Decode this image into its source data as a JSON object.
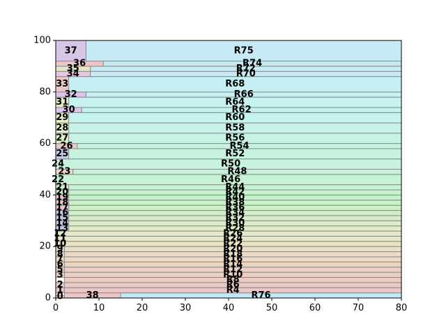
{
  "chart_data": {
    "type": "treemap",
    "title": "",
    "xlabel": "",
    "ylabel": "",
    "xlim": [
      0,
      80
    ],
    "ylim": [
      0,
      100
    ],
    "xticks": [
      0,
      10,
      20,
      30,
      40,
      50,
      60,
      70,
      80
    ],
    "yticks": [
      0,
      20,
      40,
      60,
      80,
      100
    ],
    "grid": false,
    "rects": [
      {
        "label": "0",
        "x0": 0,
        "y0": 0,
        "x1": 2,
        "y1": 1,
        "color": "#ecc6c6"
      },
      {
        "label": "38",
        "x0": 2,
        "y0": 0,
        "x1": 15,
        "y1": 2,
        "color": "#ecc6c6"
      },
      {
        "label": "R76",
        "x0": 15,
        "y0": 0,
        "x1": 80,
        "y1": 2,
        "color": "#bfe9f4"
      },
      {
        "label": "1",
        "x0": 0,
        "y0": 2,
        "x1": 2,
        "y1": 4,
        "color": "#ecc6c6"
      },
      {
        "label": "R4",
        "x0": 2,
        "y0": 2,
        "x1": 80,
        "y1": 4,
        "color": "#ecc6c6"
      },
      {
        "label": "2",
        "x0": 0,
        "y0": 4,
        "x1": 2,
        "y1": 6,
        "color": "#ecc9c5"
      },
      {
        "label": "R6",
        "x0": 2,
        "y0": 4,
        "x1": 80,
        "y1": 6,
        "color": "#ecc9c5"
      },
      {
        "label": "R8",
        "x0": 2,
        "y0": 6,
        "x1": 80,
        "y1": 8,
        "color": "#eccbc4"
      },
      {
        "label": "3",
        "x0": 0,
        "y0": 8,
        "x1": 2,
        "y1": 10,
        "color": "#eccec3"
      },
      {
        "label": "R10",
        "x0": 2,
        "y0": 8,
        "x1": 80,
        "y1": 10,
        "color": "#eccec3"
      },
      {
        "label": "5",
        "x0": 0,
        "y0": 10,
        "x1": 2,
        "y1": 12,
        "color": "#ecd1c3"
      },
      {
        "label": "R12",
        "x0": 2,
        "y0": 10,
        "x1": 80,
        "y1": 12,
        "color": "#ecd1c3"
      },
      {
        "label": "6",
        "x0": 0,
        "y0": 12,
        "x1": 2,
        "y1": 14,
        "color": "#ecd4c3"
      },
      {
        "label": "R14",
        "x0": 2,
        "y0": 12,
        "x1": 80,
        "y1": 14,
        "color": "#ecd4c3"
      },
      {
        "label": "7",
        "x0": 0,
        "y0": 14,
        "x1": 2,
        "y1": 16,
        "color": "#ecd8c3"
      },
      {
        "label": "R16",
        "x0": 2,
        "y0": 14,
        "x1": 80,
        "y1": 16,
        "color": "#ecd8c3"
      },
      {
        "label": "8",
        "x0": 0,
        "y0": 16,
        "x1": 2,
        "y1": 18,
        "color": "#ecdcc4"
      },
      {
        "label": "R18",
        "x0": 2,
        "y0": 16,
        "x1": 80,
        "y1": 18,
        "color": "#ecdcc4"
      },
      {
        "label": "9",
        "x0": 0,
        "y0": 18,
        "x1": 2,
        "y1": 20,
        "color": "#ebe0c5"
      },
      {
        "label": "R20",
        "x0": 2,
        "y0": 18,
        "x1": 80,
        "y1": 20,
        "color": "#ebe0c5"
      },
      {
        "label": "R22",
        "x0": 2,
        "y0": 20,
        "x1": 80,
        "y1": 22,
        "color": "#eae4c5"
      },
      {
        "label": "10",
        "x0": 0,
        "y0": 20,
        "x1": 2,
        "y1": 22,
        "color": "#eae4c5"
      },
      {
        "label": "R24",
        "x0": 2,
        "y0": 22,
        "x1": 80,
        "y1": 24,
        "color": "#e8e8c6"
      },
      {
        "label": "11",
        "x0": 0,
        "y0": 22,
        "x1": 2,
        "y1": 24,
        "color": "#e8e8c6"
      },
      {
        "label": "R26",
        "x0": 2,
        "y0": 24,
        "x1": 80,
        "y1": 26,
        "color": "#e4eac6"
      },
      {
        "label": "12",
        "x0": 0,
        "y0": 24,
        "x1": 2,
        "y1": 26,
        "color": "#e4eac6"
      },
      {
        "label": "13",
        "x0": 0,
        "y0": 26,
        "x1": 3,
        "y1": 28,
        "color": "#c6cdec"
      },
      {
        "label": "R28",
        "x0": 3,
        "y0": 26,
        "x1": 80,
        "y1": 28,
        "color": "#dfecc6"
      },
      {
        "label": "14",
        "x0": 0,
        "y0": 28,
        "x1": 3,
        "y1": 30,
        "color": "#c6cdec"
      },
      {
        "label": "R30",
        "x0": 3,
        "y0": 28,
        "x1": 80,
        "y1": 30,
        "color": "#dbedc6"
      },
      {
        "label": "15",
        "x0": 0,
        "y0": 30,
        "x1": 3,
        "y1": 32,
        "color": "#c6cdec"
      },
      {
        "label": "R32",
        "x0": 3,
        "y0": 30,
        "x1": 80,
        "y1": 32,
        "color": "#d6eec6"
      },
      {
        "label": "16",
        "x0": 0,
        "y0": 32,
        "x1": 3,
        "y1": 34,
        "color": "#c6cdec"
      },
      {
        "label": "R34",
        "x0": 3,
        "y0": 32,
        "x1": 80,
        "y1": 34,
        "color": "#d2efc6"
      },
      {
        "label": "17",
        "x0": 0,
        "y0": 34,
        "x1": 3,
        "y1": 36,
        "color": "#ecc6cc"
      },
      {
        "label": "R36",
        "x0": 3,
        "y0": 34,
        "x1": 80,
        "y1": 36,
        "color": "#cdf0c6"
      },
      {
        "label": "18",
        "x0": 0,
        "y0": 36,
        "x1": 3,
        "y1": 38,
        "color": "#ecc6cc"
      },
      {
        "label": "R38",
        "x0": 3,
        "y0": 36,
        "x1": 80,
        "y1": 38,
        "color": "#c9f1c6"
      },
      {
        "label": "19",
        "x0": 0,
        "y0": 38,
        "x1": 3,
        "y1": 40,
        "color": "#ecc6cc"
      },
      {
        "label": "R40",
        "x0": 3,
        "y0": 38,
        "x1": 80,
        "y1": 40,
        "color": "#c6f2c8"
      },
      {
        "label": "20",
        "x0": 0,
        "y0": 40,
        "x1": 3,
        "y1": 42,
        "color": "#c6f2cc"
      },
      {
        "label": "R42",
        "x0": 3,
        "y0": 40,
        "x1": 80,
        "y1": 42,
        "color": "#c6f2cc"
      },
      {
        "label": "21",
        "x0": 0,
        "y0": 42,
        "x1": 3,
        "y1": 44,
        "color": "#c6f3d0"
      },
      {
        "label": "R44",
        "x0": 3,
        "y0": 42,
        "x1": 80,
        "y1": 44,
        "color": "#c6f3d0"
      },
      {
        "label": "22",
        "x0": 0,
        "y0": 44,
        "x1": 1,
        "y1": 48,
        "color": "#c6f3d4"
      },
      {
        "label": "R46",
        "x0": 1,
        "y0": 44,
        "x1": 80,
        "y1": 48,
        "color": "#c6f3d4"
      },
      {
        "label": "23",
        "x0": 0,
        "y0": 48,
        "x1": 4,
        "y1": 50,
        "color": "#ecd6c6"
      },
      {
        "label": "R48",
        "x0": 4,
        "y0": 48,
        "x1": 80,
        "y1": 50,
        "color": "#c6f3d8"
      },
      {
        "label": "24",
        "x0": 0,
        "y0": 50,
        "x1": 1,
        "y1": 54,
        "color": "#c6f3dc"
      },
      {
        "label": "R50",
        "x0": 1,
        "y0": 50,
        "x1": 80,
        "y1": 54,
        "color": "#c6f3dc"
      },
      {
        "label": "25",
        "x0": 0,
        "y0": 54,
        "x1": 3,
        "y1": 58,
        "color": "#c6c9ec"
      },
      {
        "label": "R52",
        "x0": 3,
        "y0": 54,
        "x1": 80,
        "y1": 58,
        "color": "#c6f3e0"
      },
      {
        "label": "26",
        "x0": 0,
        "y0": 58,
        "x1": 5,
        "y1": 60,
        "color": "#ecc6c6"
      },
      {
        "label": "R54",
        "x0": 5,
        "y0": 58,
        "x1": 80,
        "y1": 60,
        "color": "#c6f3e3"
      },
      {
        "label": "27",
        "x0": 0,
        "y0": 60,
        "x1": 3,
        "y1": 64,
        "color": "#d6efc6"
      },
      {
        "label": "R56",
        "x0": 3,
        "y0": 60,
        "x1": 80,
        "y1": 64,
        "color": "#c6f3e6"
      },
      {
        "label": "28",
        "x0": 0,
        "y0": 64,
        "x1": 3,
        "y1": 68,
        "color": "#dcefc6"
      },
      {
        "label": "R58",
        "x0": 3,
        "y0": 64,
        "x1": 80,
        "y1": 68,
        "color": "#c6f3e9"
      },
      {
        "label": "29",
        "x0": 0,
        "y0": 68,
        "x1": 3,
        "y1": 72,
        "color": "#e4edc6"
      },
      {
        "label": "R60",
        "x0": 3,
        "y0": 68,
        "x1": 80,
        "y1": 72,
        "color": "#c6f3ec"
      },
      {
        "label": "30",
        "x0": 0,
        "y0": 72,
        "x1": 6,
        "y1": 74,
        "color": "#dcc6ec"
      },
      {
        "label": "R62",
        "x0": 6,
        "y0": 72,
        "x1": 80,
        "y1": 74,
        "color": "#c6f2ee"
      },
      {
        "label": "31",
        "x0": 0,
        "y0": 74,
        "x1": 3,
        "y1": 78,
        "color": "#e8ecc6"
      },
      {
        "label": "R64",
        "x0": 3,
        "y0": 74,
        "x1": 80,
        "y1": 78,
        "color": "#c6f2f0"
      },
      {
        "label": "32",
        "x0": 0,
        "y0": 78,
        "x1": 7,
        "y1": 80,
        "color": "#dcc6ec"
      },
      {
        "label": "R66",
        "x0": 7,
        "y0": 78,
        "x1": 80,
        "y1": 80,
        "color": "#c6f1f2"
      },
      {
        "label": "33",
        "x0": 0,
        "y0": 80,
        "x1": 3,
        "y1": 86,
        "color": "#ecc6c6"
      },
      {
        "label": "R68",
        "x0": 3,
        "y0": 80,
        "x1": 80,
        "y1": 86,
        "color": "#c6eff3"
      },
      {
        "label": "34",
        "x0": 0,
        "y0": 86,
        "x1": 8,
        "y1": 88,
        "color": "#e8c6e4"
      },
      {
        "label": "R70",
        "x0": 8,
        "y0": 86,
        "x1": 80,
        "y1": 88,
        "color": "#c6edf3"
      },
      {
        "label": "35",
        "x0": 0,
        "y0": 88,
        "x1": 8,
        "y1": 90,
        "color": "#e3e6c6"
      },
      {
        "label": "R72",
        "x0": 8,
        "y0": 88,
        "x1": 80,
        "y1": 90,
        "color": "#c6ecf3"
      },
      {
        "label": "36",
        "x0": 0,
        "y0": 90,
        "x1": 11,
        "y1": 92,
        "color": "#ecc6c6"
      },
      {
        "label": "R74",
        "x0": 11,
        "y0": 90,
        "x1": 80,
        "y1": 92,
        "color": "#c6eaf3"
      },
      {
        "label": "37",
        "x0": 0,
        "y0": 92,
        "x1": 7,
        "y1": 100,
        "color": "#d8c6e6"
      },
      {
        "label": "R75",
        "x0": 7,
        "y0": 92,
        "x1": 80,
        "y1": 100,
        "color": "#c6e9f3"
      }
    ]
  }
}
